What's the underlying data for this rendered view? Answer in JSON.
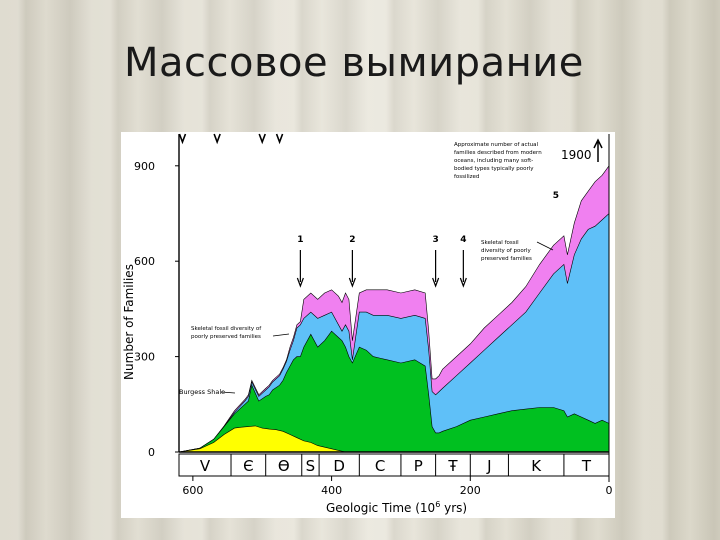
{
  "slide": {
    "title": "Массовое вымирание"
  },
  "chart_data": {
    "type": "area",
    "title": "",
    "xlabel": "Geologic Time (10",
    "xlabel_exp": "6",
    "xlabel_unit": " yrs)",
    "ylabel": "Number of Families",
    "x_reversed": true,
    "xlim": [
      620,
      0
    ],
    "ylim": [
      0,
      1000
    ],
    "x_ticks": [
      600,
      400,
      200,
      0
    ],
    "y_ticks": [
      0,
      300,
      600,
      900
    ],
    "periods": [
      "V",
      "Є",
      "Ө",
      "S",
      "D",
      "C",
      "P",
      "Ŧ",
      "J",
      "K",
      "T"
    ],
    "series": [
      {
        "label": "Burgess Shale",
        "color": "#ffff00",
        "x": [
          620,
          590,
          570,
          555,
          540,
          530,
          520,
          510,
          500,
          490,
          480,
          470,
          460,
          450,
          440,
          430,
          420,
          410,
          400,
          390,
          380
        ],
        "y": [
          0,
          10,
          30,
          55,
          75,
          78,
          80,
          82,
          75,
          72,
          70,
          65,
          55,
          45,
          35,
          30,
          20,
          15,
          10,
          5,
          0
        ]
      },
      {
        "label": "",
        "color": "#00c020",
        "x": [
          620,
          590,
          570,
          555,
          540,
          525,
          520,
          515,
          505,
          495,
          490,
          485,
          475,
          470,
          465,
          460,
          455,
          450,
          445,
          440,
          430,
          420,
          410,
          400,
          390,
          385,
          380,
          375,
          370,
          360,
          350,
          340,
          320,
          300,
          280,
          265,
          260,
          255,
          250,
          245,
          240,
          220,
          200,
          180,
          160,
          140,
          120,
          100,
          80,
          65,
          60,
          50,
          40,
          30,
          20,
          10,
          0
        ],
        "y": [
          0,
          12,
          40,
          80,
          120,
          150,
          160,
          210,
          160,
          175,
          180,
          195,
          210,
          225,
          250,
          270,
          290,
          300,
          300,
          330,
          370,
          330,
          350,
          380,
          360,
          350,
          330,
          300,
          280,
          330,
          320,
          300,
          290,
          280,
          290,
          270,
          180,
          80,
          60,
          60,
          65,
          80,
          100,
          110,
          120,
          130,
          135,
          140,
          140,
          130,
          110,
          120,
          110,
          100,
          90,
          100,
          90
        ]
      },
      {
        "label": "Skeletal fossil diversity of poorly preserved families",
        "color": "#5fc0f8",
        "x": [
          620,
          590,
          570,
          555,
          540,
          525,
          520,
          515,
          505,
          495,
          490,
          485,
          475,
          470,
          465,
          460,
          455,
          450,
          445,
          440,
          430,
          420,
          410,
          400,
          390,
          385,
          380,
          375,
          370,
          360,
          350,
          340,
          320,
          300,
          280,
          265,
          260,
          255,
          250,
          245,
          240,
          220,
          200,
          180,
          160,
          140,
          120,
          100,
          80,
          65,
          60,
          50,
          40,
          30,
          20,
          10,
          0
        ],
        "y": [
          0,
          12,
          40,
          80,
          125,
          160,
          175,
          220,
          175,
          195,
          205,
          220,
          240,
          260,
          285,
          320,
          350,
          390,
          400,
          420,
          440,
          420,
          430,
          440,
          400,
          380,
          400,
          380,
          290,
          440,
          440,
          430,
          430,
          420,
          430,
          420,
          320,
          190,
          180,
          190,
          200,
          240,
          280,
          320,
          360,
          400,
          440,
          500,
          560,
          590,
          530,
          620,
          670,
          700,
          710,
          730,
          750
        ]
      },
      {
        "label": "Approximate number of actual families described from modern oceans, including many soft-bodied types typically poorly fossilized",
        "color": "#f080f0",
        "x": [
          620,
          590,
          570,
          555,
          540,
          525,
          520,
          515,
          505,
          495,
          490,
          485,
          475,
          470,
          465,
          460,
          455,
          450,
          445,
          440,
          430,
          420,
          410,
          400,
          390,
          385,
          380,
          375,
          370,
          360,
          350,
          340,
          320,
          300,
          280,
          265,
          260,
          255,
          250,
          245,
          240,
          220,
          200,
          180,
          160,
          140,
          120,
          100,
          80,
          65,
          60,
          50,
          40,
          30,
          20,
          10,
          0
        ],
        "y": [
          0,
          12,
          40,
          82,
          130,
          165,
          180,
          225,
          180,
          200,
          210,
          225,
          245,
          265,
          290,
          330,
          360,
          400,
          410,
          480,
          500,
          480,
          500,
          510,
          490,
          470,
          500,
          480,
          350,
          500,
          510,
          510,
          510,
          500,
          510,
          500,
          380,
          230,
          230,
          240,
          260,
          300,
          340,
          390,
          430,
          470,
          520,
          590,
          650,
          680,
          620,
          720,
          790,
          820,
          850,
          870,
          900
        ]
      }
    ],
    "extinctions": [
      {
        "label": "1",
        "x": 445
      },
      {
        "label": "2",
        "x": 370
      },
      {
        "label": "3",
        "x": 250
      },
      {
        "label": "4",
        "x": 210
      },
      {
        "label": "5",
        "x": 65
      }
    ],
    "top_markers_x": [
      615,
      565,
      500,
      475
    ],
    "annotations": {
      "burgess": "Burgess Shale",
      "poorly_1": "Skeletal fossil diversity of",
      "poorly_2": "poorly preserved families",
      "right_1": "Skeletal fossil",
      "right_2": "diversity of poorly",
      "right_3": "preserved families",
      "top_1": "Approximate number of actual",
      "top_2": "families described from modern",
      "top_3": "oceans, including many soft-",
      "top_4": "bodied types typically poorly",
      "top_5": "fossilized",
      "top_value": "1900"
    }
  }
}
